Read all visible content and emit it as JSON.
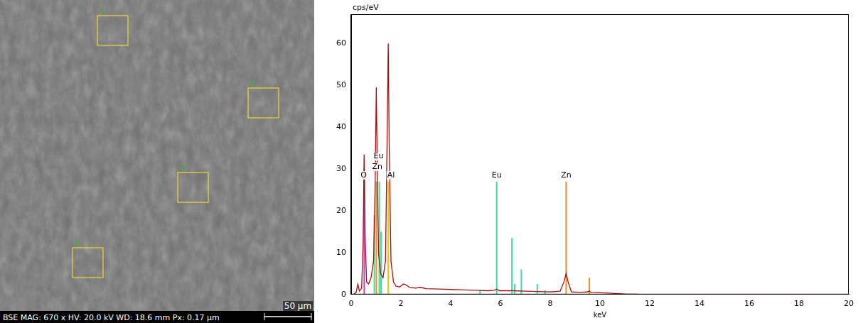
{
  "micrograph": {
    "info": [
      "BSE",
      "MAG: 670 x",
      "HV: 20.0 kV",
      "WD: 18.6 mm",
      "Px: 0.17 µm"
    ],
    "scale_bar": "50 µm",
    "regions": [
      "1",
      "2",
      "4",
      "3"
    ]
  },
  "chart_data": {
    "type": "line",
    "x_label": "keV",
    "y_label": "cps/eV",
    "xlim": [
      0,
      20
    ],
    "xticks": [
      0,
      2,
      4,
      6,
      8,
      10,
      12,
      14,
      16,
      18,
      20
    ],
    "ylim": [
      0,
      67
    ],
    "yticks": [
      0,
      10,
      20,
      30,
      40,
      50,
      60
    ],
    "grid": false,
    "series": [
      {
        "color": "#a01010",
        "x": [
          0.1,
          0.2,
          0.27,
          0.33,
          0.42,
          0.48,
          0.52,
          0.56,
          0.62,
          0.7,
          0.8,
          0.9,
          0.96,
          1.01,
          1.05,
          1.1,
          1.18,
          1.28,
          1.38,
          1.44,
          1.49,
          1.53,
          1.6,
          1.7,
          1.8,
          1.95,
          2.1,
          2.2,
          2.35,
          2.6,
          2.8,
          3.0,
          3.5,
          4,
          4.5,
          5,
          5.5,
          5.75,
          5.85,
          5.95,
          6.5,
          7,
          7.5,
          8,
          8.4,
          8.55,
          8.64,
          8.72,
          8.85,
          9.2,
          9.5,
          9.57,
          9.65,
          10,
          10.5,
          11,
          12,
          14,
          16,
          18,
          20
        ],
        "values": [
          0,
          0.5,
          2.5,
          0.8,
          1.5,
          12,
          33.5,
          14,
          3,
          2.5,
          4,
          8,
          25,
          49.5,
          30,
          10,
          5,
          4,
          8,
          35,
          60,
          35,
          8,
          3,
          2,
          1.8,
          2.5,
          2.3,
          1.7,
          1.5,
          1.7,
          1.4,
          1.3,
          1.2,
          1.1,
          1.0,
          0.9,
          1.0,
          1.3,
          0.9,
          0.9,
          0.8,
          0.7,
          0.6,
          0.8,
          3,
          5,
          3,
          0.6,
          0.5,
          0.6,
          0.8,
          0.5,
          0.4,
          0.3,
          0.1,
          0,
          0,
          0,
          0,
          0
        ]
      }
    ],
    "lines": [
      {
        "name": "O",
        "color": "#d23cd2",
        "x": [
          0.525
        ],
        "heights": [
          30
        ]
      },
      {
        "name": "Zn",
        "color": "#ff8c1a",
        "x": [
          1.012,
          8.64,
          9.57
        ],
        "heights": [
          27,
          27,
          4
        ]
      },
      {
        "name": "Eu",
        "color": "#3ee0a0",
        "x": [
          0.93,
          1.13,
          1.2,
          5.18,
          5.85,
          6.46,
          6.57,
          6.84,
          7.48,
          7.79
        ],
        "heights": [
          19,
          27,
          15,
          1,
          27,
          13.5,
          2.5,
          6,
          2.5,
          1
        ]
      },
      {
        "name": "Al",
        "color": "#ffc000",
        "x": [
          1.487
        ],
        "heights": [
          27
        ]
      }
    ],
    "annotations": [
      {
        "text": "O",
        "x": 0.5,
        "y": 28.5
      },
      {
        "text": "Zn",
        "x": 1.05,
        "y": 30.5
      },
      {
        "text": "Eu",
        "x": 1.1,
        "y": 33
      },
      {
        "text": "Al",
        "x": 1.6,
        "y": 28.5
      },
      {
        "text": "Eu",
        "x": 5.85,
        "y": 28.5
      },
      {
        "text": "Zn",
        "x": 8.64,
        "y": 28.5
      }
    ]
  }
}
